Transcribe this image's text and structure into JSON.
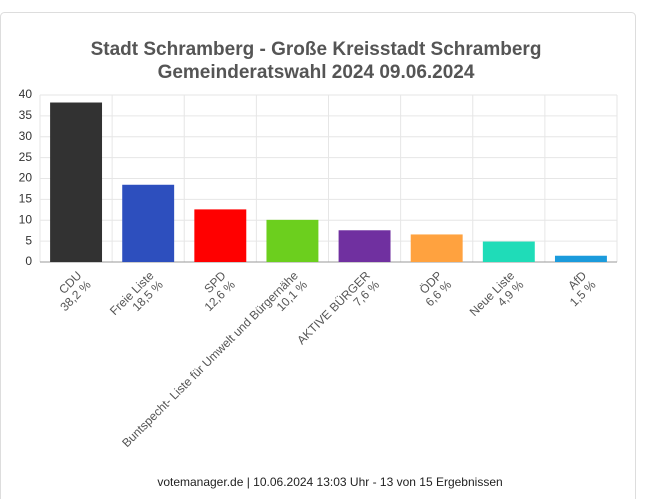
{
  "chart_data": {
    "type": "bar",
    "title": "Stadt Schramberg - Große Kreisstadt Schramberg",
    "subtitle": "Gemeinderatswahl 2024 09.06.2024",
    "categories": [
      "CDU",
      "Freie Liste",
      "SPD",
      "Buntspecht- Liste für Umwelt und Bürgernähe",
      "AKTIVE BÜRGER",
      "ÖDP",
      "Neue Liste",
      "AfD"
    ],
    "values": [
      38.2,
      18.5,
      12.6,
      10.1,
      7.6,
      6.6,
      4.9,
      1.5
    ],
    "value_labels": [
      "38,2 %",
      "18,5 %",
      "12,6 %",
      "10,1 %",
      "7,6 %",
      "6,6 %",
      "4,9 %",
      "1,5 %"
    ],
    "colors": [
      "#323232",
      "#2d4fbe",
      "#ff0000",
      "#6ccf1e",
      "#7030a0",
      "#ffa23f",
      "#1fdcb8",
      "#1b9bdc"
    ],
    "ylim": [
      0,
      40
    ],
    "yticks": [
      0,
      5,
      10,
      15,
      20,
      25,
      30,
      35,
      40
    ],
    "grid": true,
    "footer": "votemanager.de | 10.06.2024 13:03 Uhr - 13 von 15 Ergebnissen"
  }
}
